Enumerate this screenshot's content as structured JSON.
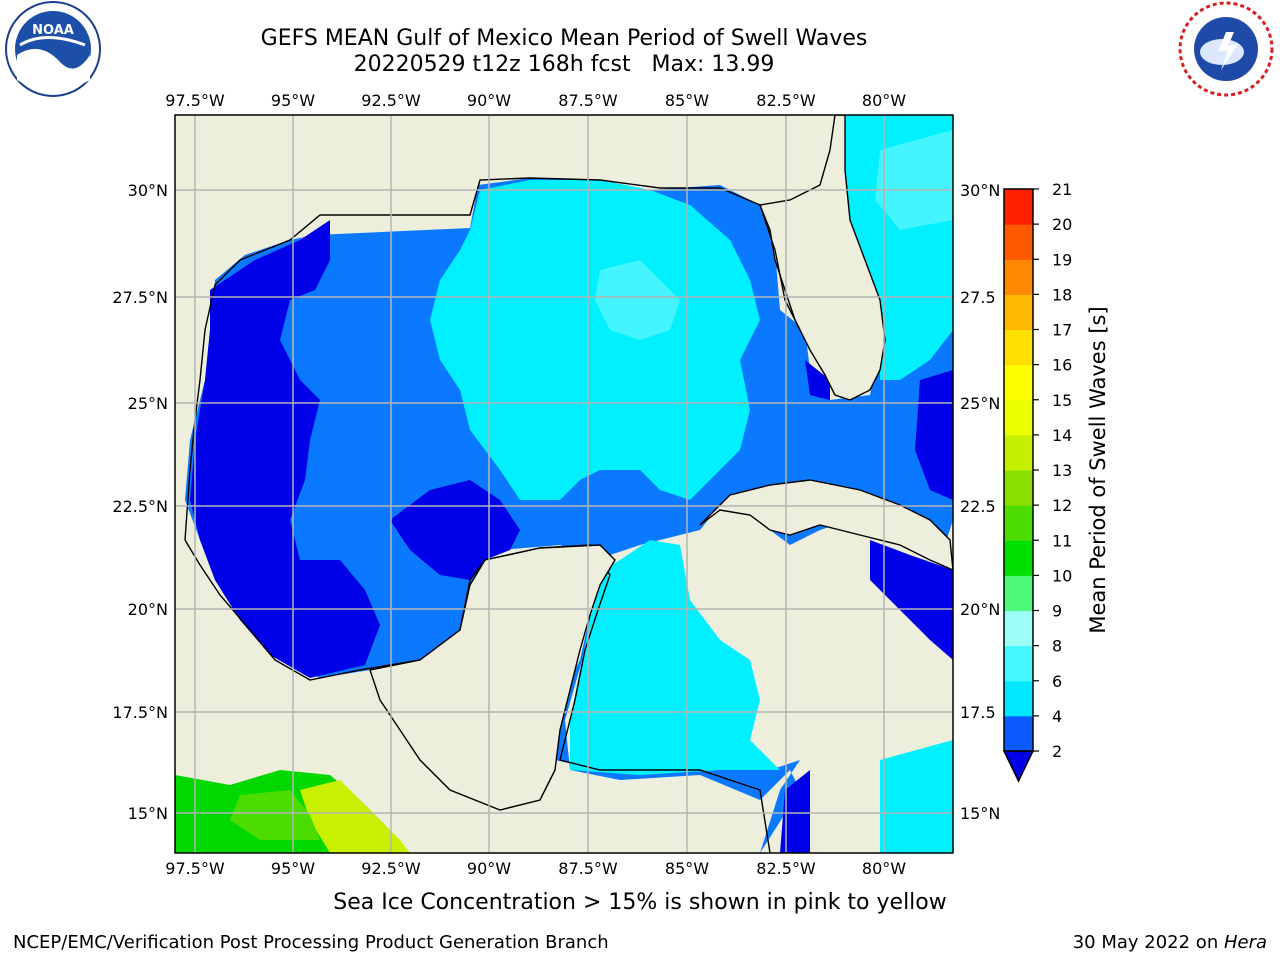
{
  "title": {
    "line1": "GEFS MEAN Gulf of Mexico Mean Period of Swell Waves",
    "line2": "20220529 t12z 168h fcst   Max: 13.99"
  },
  "logos": {
    "left": "noara-logo",
    "left_text": "NOAA",
    "right": "nws-logo"
  },
  "axes": {
    "lon_labels": [
      "97.5°W",
      "95°W",
      "92.5°W",
      "90°W",
      "87.5°W",
      "85°W",
      "82.5°W",
      "80°W"
    ],
    "lat_labels": [
      "30°N",
      "27.5°N",
      "25°N",
      "22.5°N",
      "20°N",
      "17.5°N",
      "15°N"
    ],
    "right_lat_labels": [
      "30°N",
      "27.5",
      "25°N",
      "22.5",
      "20°N",
      "17.5",
      "15°N"
    ]
  },
  "colorbar": {
    "label": "Mean Period of Swell Waves [s]",
    "ticks": [
      "2",
      "4",
      "6",
      "8",
      "9",
      "10",
      "11",
      "12",
      "13",
      "14",
      "15",
      "16",
      "17",
      "18",
      "19",
      "20",
      "21"
    ],
    "colors": [
      "#0a5aff",
      "#00e8ff",
      "#45f5ff",
      "#9cfff7",
      "#4cf77a",
      "#00e000",
      "#4ddc00",
      "#8ae000",
      "#c4f000",
      "#eaff00",
      "#ffff00",
      "#ffe000",
      "#ffb800",
      "#ff8800",
      "#ff5a00",
      "#ff2000"
    ],
    "under_color": "#0000e8"
  },
  "colors": {
    "land": "#eeeedd",
    "deep_blue": "#0000e8",
    "mid_blue": "#0a78ff",
    "cyan": "#00f0ff",
    "light_cyan": "#44f4ff",
    "green": "#00d800",
    "lime": "#c8f000",
    "grid": "#b4b4b4"
  },
  "note": "Sea Ice Concentration > 15% is shown in pink to yellow",
  "footer": {
    "left": "NCEP/EMC/Verification Post Processing Product Generation Branch",
    "right_date": "30 May 2022 on ",
    "right_machine": "Hera"
  }
}
